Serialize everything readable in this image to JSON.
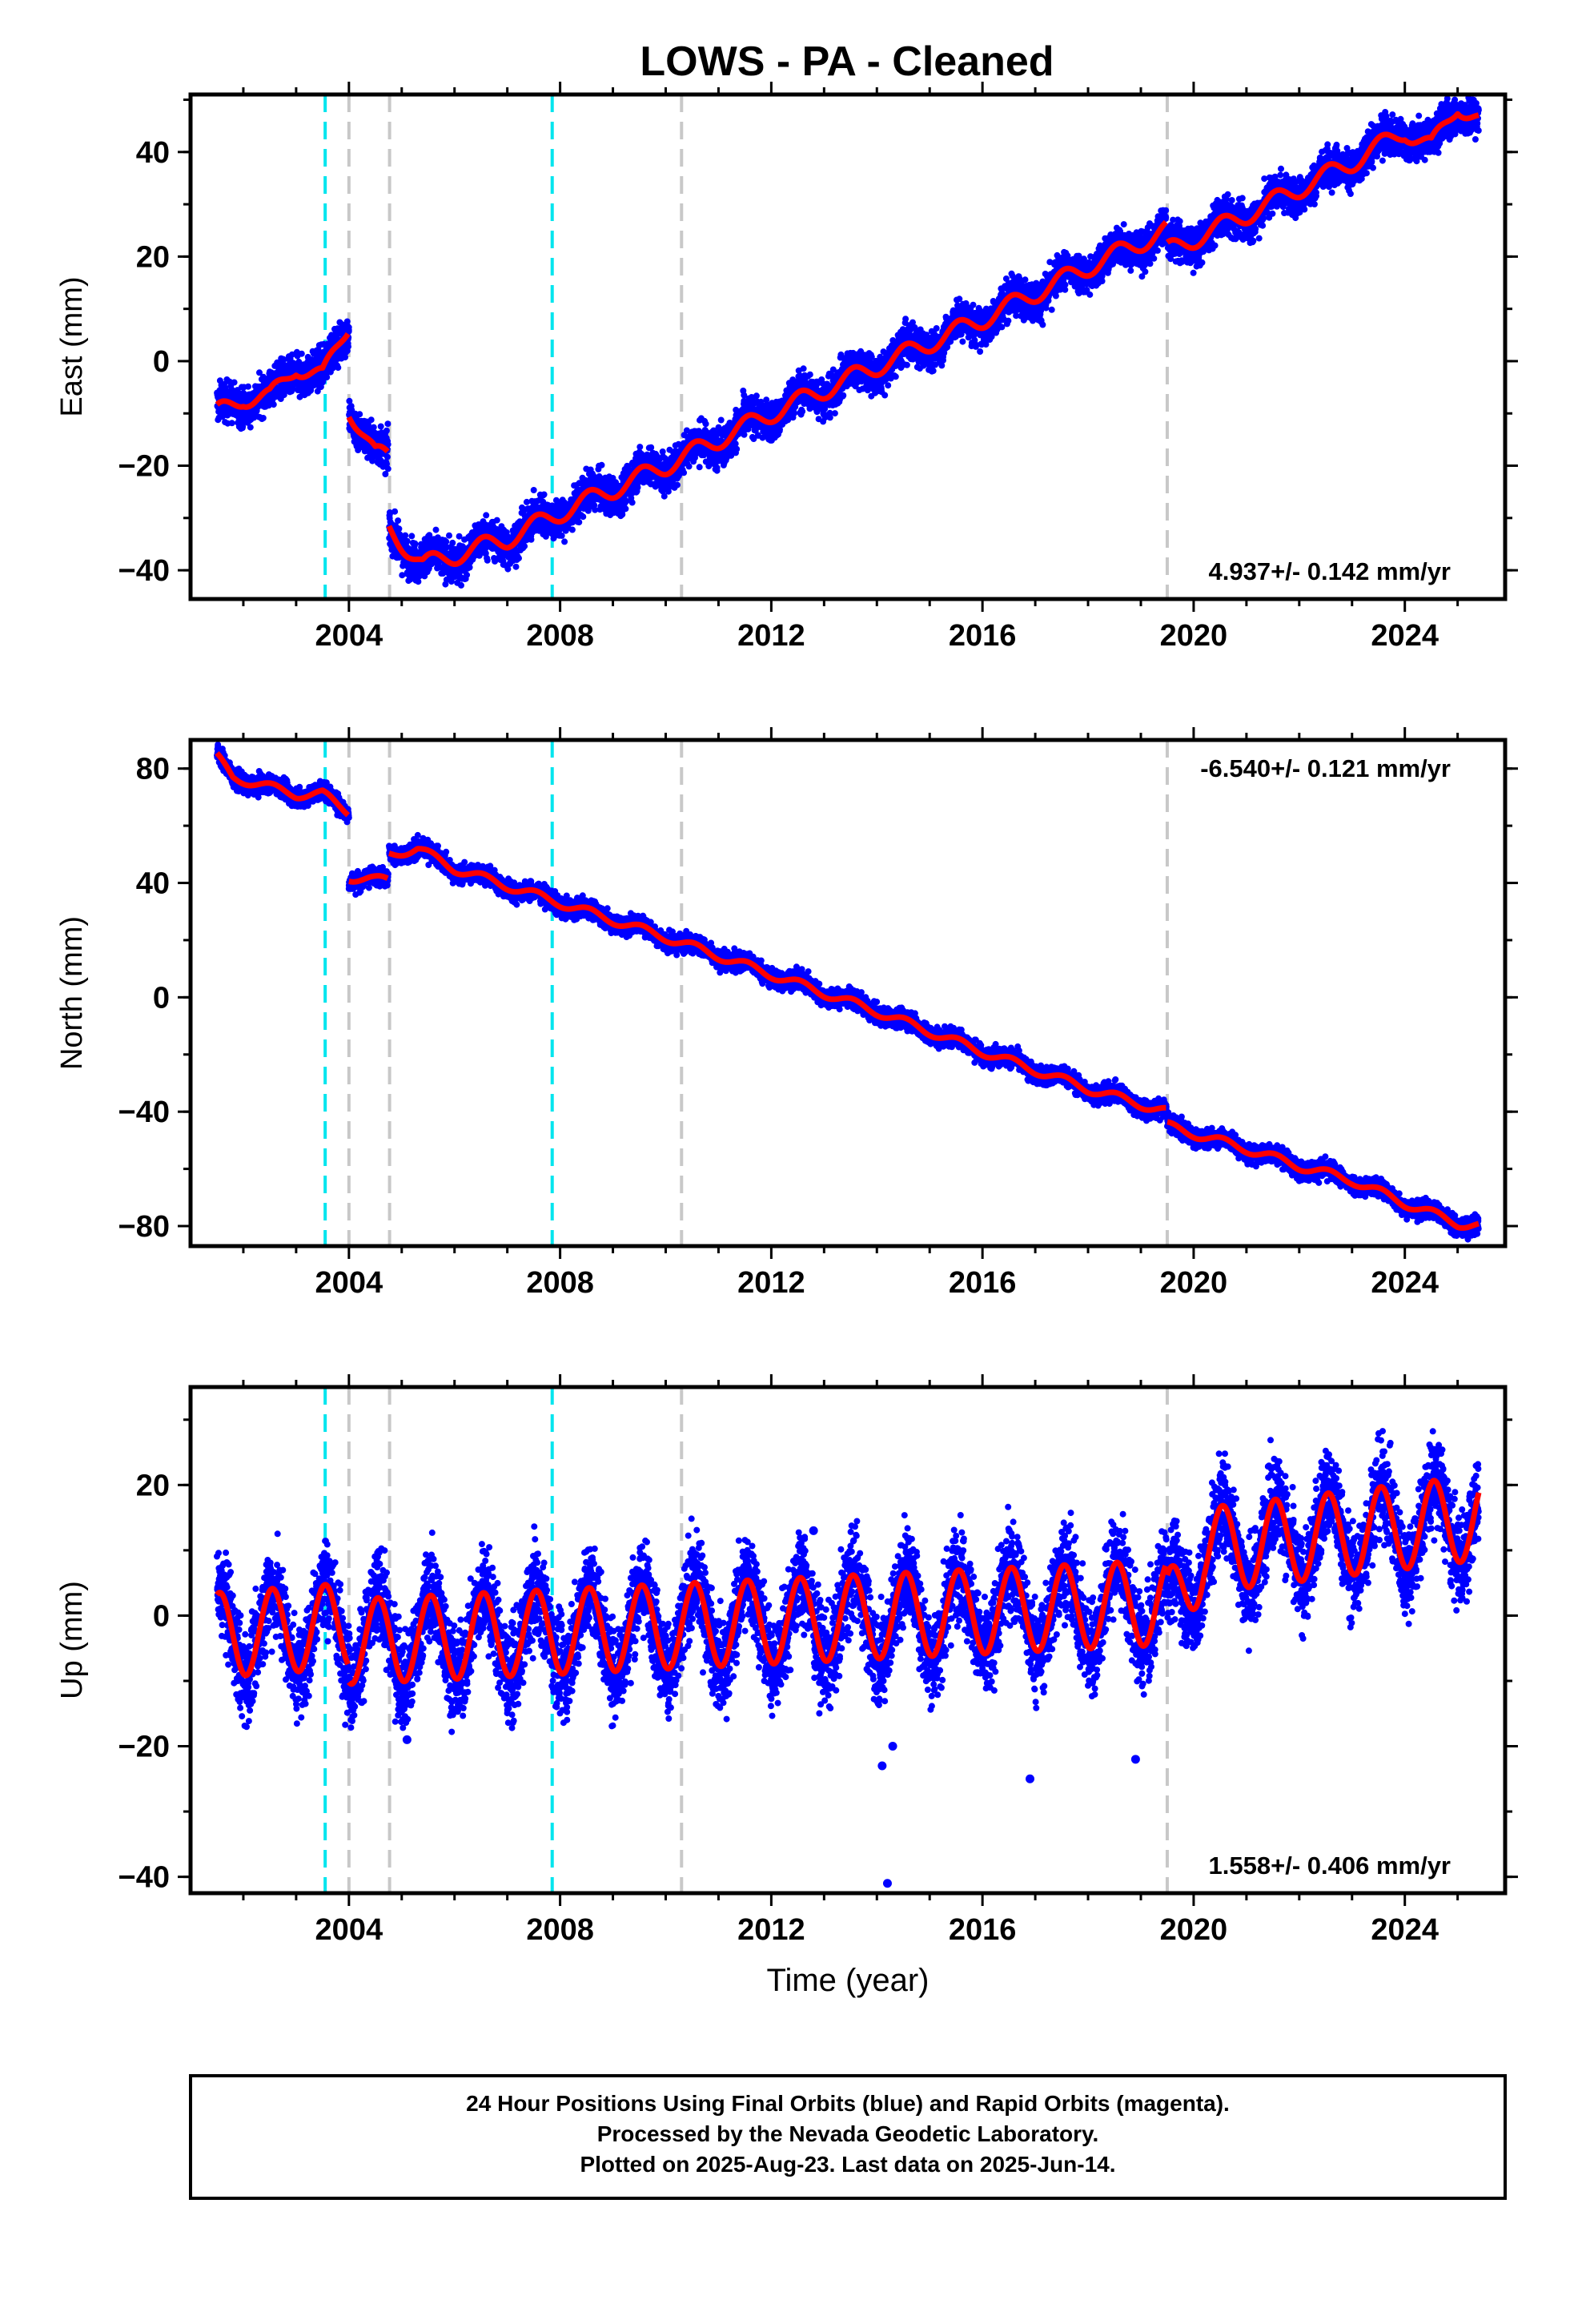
{
  "title": "LOWS  - PA - Cleaned",
  "footer": {
    "line1": "24 Hour Positions Using Final Orbits (blue) and Rapid Orbits (magenta).",
    "line2": "Processed by the Nevada Geodetic Laboratory.",
    "line3": "Plotted on 2025-Aug-23. Last data on 2025-Jun-14."
  },
  "colors": {
    "data": "#0000ff",
    "model": "#ff0000",
    "antenna_change": "#00e5ee",
    "equipment_change": "#c8c8c8"
  },
  "chart_data": [
    {
      "type": "scatter",
      "panel": "east",
      "ylabel": "East (mm)",
      "xlabel": "",
      "rate_label": "4.937+/- 0.142 mm/yr",
      "xlim": [
        2001.0,
        2025.9
      ],
      "ylim": [
        -45.5,
        51
      ],
      "xticks": [
        "2004",
        "2008",
        "2012",
        "2016",
        "2020",
        "2024"
      ],
      "yticks": [
        "40",
        "20",
        "0",
        "-20",
        "-40"
      ],
      "trend": {
        "segments": [
          {
            "x": [
              2001.5,
              2002.0,
              2002.5,
              2003.0,
              2003.5,
              2003.99
            ],
            "y": [
              -10,
              -7,
              -7,
              -1,
              -3,
              7
            ]
          },
          {
            "x": [
              2004.0,
              2004.5,
              2004.74
            ],
            "y": [
              -9,
              -18,
              -18
            ]
          },
          {
            "x": [
              2004.76,
              2005.4,
              2007.0,
              2008.0,
              2010.0,
              2012.0,
              2014.0,
              2016.0,
              2018.0,
              2019.48
            ],
            "y": [
              -32,
              -39,
              -34,
              -29,
              -20,
              -10,
              -1,
              8,
              18,
              25
            ]
          },
          {
            "x": [
              2019.5,
              2021.0,
              2022.0,
              2023.0,
              2024.0,
              2024.5,
              2025.0,
              2025.4
            ],
            "y": [
              21,
              28,
              33,
              38,
              44,
              41,
              49,
              46
            ]
          }
        ],
        "seasonal_amplitude": 1.8,
        "scatter": 1.8
      }
    },
    {
      "type": "scatter",
      "panel": "north",
      "ylabel": "North (mm)",
      "xlabel": "",
      "rate_label": "-6.540+/- 0.121 mm/yr",
      "xlim": [
        2001.0,
        2025.9
      ],
      "ylim": [
        -87,
        90
      ],
      "xticks": [
        "2004",
        "2008",
        "2012",
        "2016",
        "2020",
        "2024"
      ],
      "yticks": [
        "80",
        "40",
        "0",
        "-40",
        "-80"
      ],
      "trend": {
        "segments": [
          {
            "x": [
              2001.5,
              2001.8,
              2003.0,
              2003.5,
              2003.99
            ],
            "y": [
              84,
              77,
              71,
              71,
              65
            ]
          },
          {
            "x": [
              2004.0,
              2004.5,
              2004.74
            ],
            "y": [
              42,
              41,
              41
            ]
          },
          {
            "x": [
              2004.76,
              2005.3,
              2006.0,
              2008.0,
              2010.0,
              2012.0,
              2014.0,
              2016.0,
              2018.0,
              2019.48
            ],
            "y": [
              50,
              52,
              45,
              33,
              21,
              8,
              -5,
              -19,
              -32,
              -40
            ]
          },
          {
            "x": [
              2019.5,
              2021.0,
              2022.0,
              2023.0,
              2024.0,
              2025.0,
              2025.4
            ],
            "y": [
              -45,
              -53,
              -59,
              -64,
              -72,
              -79,
              -80
            ]
          }
        ],
        "seasonal_amplitude": 1.5,
        "scatter": 1.6
      }
    },
    {
      "type": "scatter",
      "panel": "up",
      "ylabel": "Up (mm)",
      "xlabel": "Time (year)",
      "rate_label": "1.558+/- 0.406 mm/yr",
      "xlim": [
        2001.0,
        2025.9
      ],
      "ylim": [
        -42.5,
        35
      ],
      "xticks": [
        "2004",
        "2008",
        "2012",
        "2016",
        "2020",
        "2024"
      ],
      "yticks": [
        "20",
        "0",
        "-20",
        "-40"
      ],
      "trend": {
        "segments": [
          {
            "x": [
              2001.5,
              2003.99
            ],
            "y": [
              -3,
              -1.5
            ]
          },
          {
            "x": [
              2004.0,
              2019.48
            ],
            "y": [
              -4,
              2
            ]
          },
          {
            "x": [
              2019.5,
              2020.2,
              2025.4
            ],
            "y": [
              0,
              10,
              15
            ]
          }
        ],
        "seasonal_amplitude": 6.5,
        "scatter": 3.5
      },
      "outliers": [
        [
          2014.2,
          -41
        ],
        [
          2014.1,
          -23
        ],
        [
          2016.9,
          -25
        ],
        [
          2018.9,
          -22
        ],
        [
          2014.3,
          -20
        ],
        [
          2005.1,
          -19
        ],
        [
          2012.8,
          13
        ]
      ]
    }
  ],
  "event_lines": {
    "antenna_change": [
      2003.55,
      2007.85
    ],
    "equipment_change": [
      2004.0,
      2004.77,
      2010.3,
      2019.5
    ]
  }
}
